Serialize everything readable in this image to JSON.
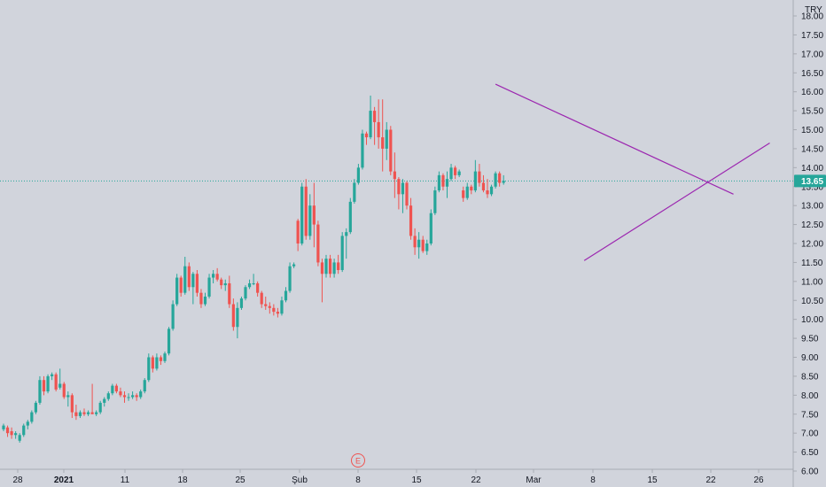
{
  "chart_data": {
    "type": "candlestick",
    "currency": "TRY",
    "price_label": "13.65",
    "current_price": 13.65,
    "event_marker": "E",
    "y_ticks": [
      "18.00",
      "17.50",
      "17.00",
      "16.50",
      "16.00",
      "15.50",
      "15.00",
      "14.50",
      "14.00",
      "13.50",
      "13.00",
      "12.50",
      "12.00",
      "11.50",
      "11.00",
      "10.50",
      "10.00",
      "9.50",
      "9.00",
      "8.50",
      "8.00",
      "7.50",
      "7.00",
      "6.50",
      "6.00"
    ],
    "ylim": [
      6.0,
      18.0
    ],
    "x_ticks": [
      {
        "label": "28",
        "bold": false
      },
      {
        "label": "2021",
        "bold": true
      },
      {
        "label": "11",
        "bold": false
      },
      {
        "label": "18",
        "bold": false
      },
      {
        "label": "25",
        "bold": false
      },
      {
        "label": "Şub",
        "bold": false
      },
      {
        "label": "8",
        "bold": false
      },
      {
        "label": "15",
        "bold": false
      },
      {
        "label": "22",
        "bold": false
      },
      {
        "label": "Mar",
        "bold": false
      },
      {
        "label": "8",
        "bold": false
      },
      {
        "label": "15",
        "bold": false
      },
      {
        "label": "22",
        "bold": false
      },
      {
        "label": "26",
        "bold": false
      }
    ],
    "colors": {
      "up": "#26a69a",
      "down": "#ef5350",
      "trendline": "#9c27b0",
      "price_line": "#26a69a",
      "background": "#d1d4dc"
    },
    "candles": [
      [
        7.1,
        7.25,
        7.05,
        7.2
      ],
      [
        7.15,
        7.2,
        6.9,
        7.0
      ],
      [
        7.05,
        7.15,
        6.85,
        6.95
      ],
      [
        6.95,
        7.05,
        6.85,
        7.0
      ],
      [
        6.8,
        7.0,
        6.75,
        6.95
      ],
      [
        6.95,
        7.25,
        6.9,
        7.2
      ],
      [
        7.2,
        7.35,
        7.1,
        7.3
      ],
      [
        7.3,
        7.6,
        7.25,
        7.55
      ],
      [
        7.55,
        7.85,
        7.5,
        7.8
      ],
      [
        7.8,
        8.5,
        7.75,
        8.4
      ],
      [
        8.4,
        8.5,
        8.0,
        8.1
      ],
      [
        8.1,
        8.55,
        8.05,
        8.5
      ],
      [
        8.5,
        8.6,
        8.4,
        8.55
      ],
      [
        8.55,
        8.6,
        8.1,
        8.15
      ],
      [
        8.2,
        8.7,
        8.15,
        8.3
      ],
      [
        8.3,
        8.35,
        7.9,
        7.95
      ],
      [
        7.95,
        8.1,
        7.7,
        8.0
      ],
      [
        8.0,
        8.05,
        7.4,
        7.55
      ],
      [
        7.55,
        7.75,
        7.35,
        7.45
      ],
      [
        7.45,
        7.6,
        7.4,
        7.55
      ],
      [
        7.55,
        7.65,
        7.45,
        7.5
      ],
      [
        7.5,
        7.6,
        7.45,
        7.55
      ],
      [
        7.55,
        8.3,
        7.5,
        7.5
      ],
      [
        7.5,
        7.6,
        7.45,
        7.55
      ],
      [
        7.55,
        7.85,
        7.5,
        7.8
      ],
      [
        7.8,
        7.95,
        7.7,
        7.9
      ],
      [
        7.9,
        8.1,
        7.85,
        8.05
      ],
      [
        8.05,
        8.3,
        8.0,
        8.25
      ],
      [
        8.25,
        8.3,
        8.05,
        8.1
      ],
      [
        8.1,
        8.2,
        7.95,
        8.0
      ],
      [
        8.0,
        8.1,
        7.8,
        7.95
      ],
      [
        7.95,
        8.05,
        7.85,
        7.95
      ],
      [
        7.95,
        8.1,
        7.9,
        8.0
      ],
      [
        8.0,
        8.05,
        7.85,
        7.95
      ],
      [
        7.95,
        8.15,
        7.9,
        8.1
      ],
      [
        8.1,
        8.45,
        8.05,
        8.4
      ],
      [
        8.4,
        9.1,
        8.35,
        9.0
      ],
      [
        9.0,
        9.05,
        8.6,
        8.7
      ],
      [
        8.7,
        9.1,
        8.65,
        9.0
      ],
      [
        9.0,
        9.05,
        8.8,
        8.9
      ],
      [
        8.9,
        9.15,
        8.85,
        9.1
      ],
      [
        9.1,
        9.8,
        9.05,
        9.75
      ],
      [
        9.75,
        10.5,
        9.7,
        10.4
      ],
      [
        10.4,
        11.2,
        10.35,
        11.1
      ],
      [
        11.1,
        11.15,
        10.6,
        10.7
      ],
      [
        10.7,
        11.65,
        10.65,
        11.4
      ],
      [
        11.4,
        11.5,
        10.75,
        10.85
      ],
      [
        10.85,
        11.25,
        10.4,
        11.2
      ],
      [
        11.2,
        11.3,
        10.6,
        10.7
      ],
      [
        10.7,
        10.8,
        10.3,
        10.4
      ],
      [
        10.4,
        10.7,
        10.35,
        10.6
      ],
      [
        10.6,
        11.2,
        10.55,
        11.1
      ],
      [
        11.1,
        11.3,
        10.95,
        11.2
      ],
      [
        11.2,
        11.35,
        11.0,
        11.05
      ],
      [
        11.05,
        11.1,
        10.8,
        10.9
      ],
      [
        10.9,
        11.05,
        10.75,
        10.95
      ],
      [
        10.95,
        11.15,
        10.3,
        10.4
      ],
      [
        10.4,
        10.55,
        9.7,
        9.8
      ],
      [
        9.8,
        10.45,
        9.5,
        10.3
      ],
      [
        10.3,
        10.6,
        10.25,
        10.55
      ],
      [
        10.55,
        10.9,
        10.5,
        10.85
      ],
      [
        10.85,
        11.05,
        10.8,
        10.95
      ],
      [
        10.95,
        11.2,
        10.9,
        10.95
      ],
      [
        10.95,
        11.0,
        10.6,
        10.7
      ],
      [
        10.7,
        10.75,
        10.3,
        10.4
      ],
      [
        10.4,
        10.6,
        10.25,
        10.35
      ],
      [
        10.35,
        10.45,
        10.15,
        10.3
      ],
      [
        10.3,
        10.4,
        10.1,
        10.2
      ],
      [
        10.2,
        10.3,
        10.05,
        10.15
      ],
      [
        10.15,
        10.6,
        10.1,
        10.5
      ],
      [
        10.5,
        10.85,
        10.45,
        10.75
      ],
      [
        10.75,
        11.5,
        10.7,
        11.4
      ],
      [
        11.4,
        11.5,
        11.35,
        11.45
      ],
      [
        12.6,
        12.65,
        11.8,
        12.0
      ],
      [
        12.0,
        13.6,
        11.95,
        13.5
      ],
      [
        13.5,
        13.7,
        12.1,
        12.2
      ],
      [
        12.2,
        13.3,
        12.1,
        13.0
      ],
      [
        13.0,
        13.6,
        11.9,
        12.5
      ],
      [
        12.5,
        12.6,
        11.4,
        11.5
      ],
      [
        11.5,
        11.6,
        10.45,
        11.2
      ],
      [
        11.2,
        11.7,
        11.1,
        11.6
      ],
      [
        11.6,
        11.7,
        11.1,
        11.2
      ],
      [
        11.2,
        11.6,
        11.1,
        11.5
      ],
      [
        11.5,
        11.7,
        11.2,
        11.3
      ],
      [
        11.3,
        12.3,
        11.25,
        12.2
      ],
      [
        12.2,
        12.4,
        11.6,
        12.3
      ],
      [
        12.3,
        13.2,
        12.25,
        13.1
      ],
      [
        13.1,
        13.7,
        13.05,
        13.6
      ],
      [
        13.6,
        14.1,
        13.55,
        14.0
      ],
      [
        14.0,
        15.0,
        13.95,
        14.9
      ],
      [
        14.9,
        14.95,
        14.6,
        14.8
      ],
      [
        14.8,
        15.9,
        14.75,
        15.5
      ],
      [
        15.5,
        15.6,
        14.6,
        15.2
      ],
      [
        15.2,
        15.8,
        14.5,
        14.8
      ],
      [
        14.8,
        15.8,
        13.9,
        14.5
      ],
      [
        14.5,
        15.2,
        14.2,
        15.0
      ],
      [
        15.0,
        15.1,
        13.8,
        13.9
      ],
      [
        13.9,
        14.4,
        13.2,
        13.7
      ],
      [
        13.7,
        13.75,
        12.9,
        13.3
      ],
      [
        13.3,
        13.7,
        12.8,
        13.6
      ],
      [
        13.6,
        13.65,
        12.9,
        13.0
      ],
      [
        13.0,
        13.2,
        12.1,
        12.2
      ],
      [
        12.2,
        12.4,
        11.7,
        11.9
      ],
      [
        11.9,
        12.3,
        11.6,
        12.1
      ],
      [
        12.1,
        12.2,
        11.75,
        11.8
      ],
      [
        11.8,
        12.1,
        11.7,
        12.0
      ],
      [
        12.0,
        12.9,
        11.95,
        12.8
      ],
      [
        12.8,
        13.5,
        12.75,
        13.4
      ],
      [
        13.4,
        13.9,
        13.35,
        13.8
      ],
      [
        13.8,
        13.85,
        13.4,
        13.5
      ],
      [
        13.5,
        13.9,
        13.2,
        13.7
      ],
      [
        13.7,
        14.1,
        13.65,
        14.0
      ],
      [
        14.0,
        14.05,
        13.7,
        13.8
      ],
      [
        13.8,
        13.95,
        13.75,
        13.9
      ],
      [
        13.4,
        13.5,
        13.1,
        13.2
      ],
      [
        13.2,
        13.6,
        13.15,
        13.5
      ],
      [
        13.5,
        13.55,
        13.3,
        13.4
      ],
      [
        13.4,
        14.2,
        13.35,
        13.9
      ],
      [
        13.9,
        14.1,
        13.5,
        13.6
      ],
      [
        13.6,
        13.8,
        13.35,
        13.4
      ],
      [
        13.4,
        13.7,
        13.2,
        13.3
      ],
      [
        13.3,
        13.55,
        13.25,
        13.5
      ],
      [
        13.5,
        13.9,
        13.45,
        13.85
      ],
      [
        13.85,
        13.9,
        13.5,
        13.6
      ],
      [
        13.6,
        13.8,
        13.55,
        13.65
      ]
    ],
    "trendlines": [
      {
        "from": [
          122,
          16.2
        ],
        "to": [
          181,
          13.3
        ]
      },
      {
        "from": [
          144,
          11.55
        ],
        "to": [
          190,
          14.65
        ]
      }
    ]
  }
}
